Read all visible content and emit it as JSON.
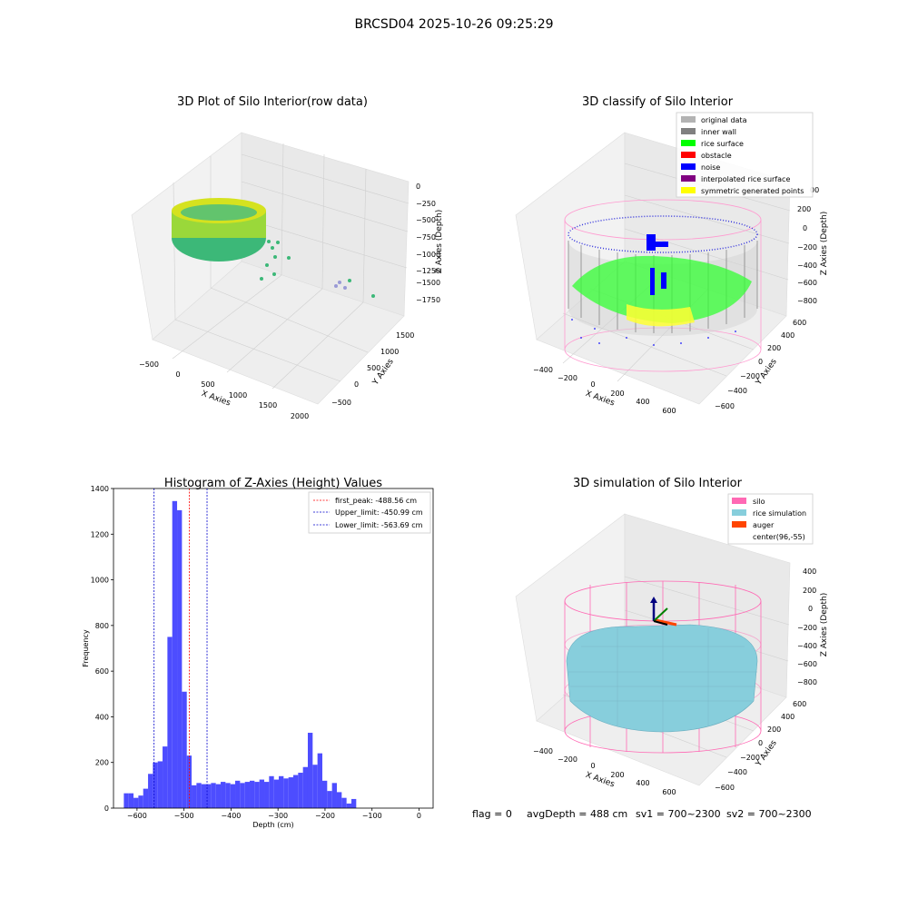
{
  "figure_title": "BRCSD04 2025-10-26 09:25:29",
  "colors": {
    "histogram_bar": "#4d4dff",
    "peak_line": "#ff0000",
    "limit_line": "#0000cc",
    "silo": "#ff69b4",
    "rice_simulation": "#87cedc",
    "auger": "#ff4500",
    "inner_wall": "#808080",
    "rice_surface": "#00ff00",
    "noise": "#0000ff",
    "original_data": "#b3b3b3",
    "obstacle": "#ff0000",
    "interpolated": "#800080",
    "symmetric": "#ffff00"
  },
  "chart_data": [
    {
      "type": "scatter3d",
      "title": "3D Plot of Silo Interior(row data)",
      "xlabel": "X Axies",
      "ylabel": "Y Axies",
      "zlabel": "Z Axies (Depth)",
      "x_ticks": [
        "−500",
        "0",
        "500",
        "1000",
        "1500",
        "2000"
      ],
      "y_ticks": [
        "−500",
        "0",
        "500",
        "1000",
        "1500"
      ],
      "z_ticks": [
        "0",
        "−250",
        "−500",
        "−750",
        "−1000",
        "−1250",
        "−1500",
        "−1750"
      ],
      "colormap": "viridis"
    },
    {
      "type": "scatter3d",
      "title": "3D classify of Silo Interior",
      "xlabel": "X Axies",
      "ylabel": "Y Axies",
      "zlabel": "Z Axies (Depth)",
      "x_ticks": [
        "−400",
        "−200",
        "0",
        "200",
        "400",
        "600"
      ],
      "y_ticks": [
        "−600",
        "−400",
        "−200",
        "0",
        "200",
        "400",
        "600"
      ],
      "z_ticks": [
        "200",
        "0",
        "−200",
        "−400",
        "−600",
        "−800"
      ],
      "z_top_tick_partial": "00",
      "legend": [
        {
          "label": "original data",
          "color": "#b3b3b3"
        },
        {
          "label": "inner wall",
          "color": "#808080"
        },
        {
          "label": "rice surface",
          "color": "#00ff00"
        },
        {
          "label": "obstacle",
          "color": "#ff0000"
        },
        {
          "label": "noise",
          "color": "#0000ff"
        },
        {
          "label": "interpolated rice surface",
          "color": "#800080"
        },
        {
          "label": "symmetric generated points",
          "color": "#ffff00"
        }
      ],
      "legend_position": "top-right"
    },
    {
      "type": "bar",
      "title": "Histogram of Z-Axies (Height) Values",
      "xlabel": "Depth (cm)",
      "ylabel": "Frequency",
      "xlim": [
        -650,
        30
      ],
      "ylim": [
        0,
        1400
      ],
      "x_ticks": [
        -600,
        -500,
        -400,
        -300,
        -200,
        -100,
        0
      ],
      "y_ticks": [
        0,
        200,
        400,
        600,
        800,
        1000,
        1200,
        1400
      ],
      "bin_start": -628,
      "bin_width": 10.3,
      "values": [
        65,
        65,
        45,
        55,
        85,
        150,
        200,
        205,
        270,
        750,
        1345,
        1305,
        510,
        230,
        100,
        110,
        105,
        105,
        110,
        105,
        115,
        110,
        105,
        120,
        110,
        115,
        120,
        115,
        125,
        115,
        140,
        125,
        140,
        130,
        135,
        145,
        155,
        180,
        330,
        190,
        240,
        120,
        75,
        110,
        70,
        45,
        20,
        40
      ],
      "vlines": [
        {
          "label": "first_peak: -488.56 cm",
          "x": -488.56,
          "color": "#ff0000"
        },
        {
          "label": "Upper_limit: -450.99 cm",
          "x": -450.99,
          "color": "#0000cc"
        },
        {
          "label": "Lower_limit: -563.69 cm",
          "x": -563.69,
          "color": "#0000cc"
        }
      ],
      "legend_position": "top-right"
    },
    {
      "type": "surface3d",
      "title": "3D simulation of Silo Interior",
      "xlabel": "X Axies",
      "ylabel": "Y Axies",
      "zlabel": "Z Axies (Depth)",
      "x_ticks": [
        "−400",
        "−200",
        "0",
        "200",
        "400",
        "600"
      ],
      "y_ticks": [
        "−600",
        "−400",
        "−200",
        "0",
        "200",
        "400",
        "600"
      ],
      "z_ticks": [
        "400",
        "200",
        "0",
        "−200",
        "−400",
        "−600",
        "−800"
      ],
      "legend": [
        {
          "label": "silo",
          "color": "#ff69b4"
        },
        {
          "label": "rice simulation",
          "color": "#87cedc"
        },
        {
          "label": "auger",
          "color": "#ff4500"
        },
        {
          "label": "center(96,-55)",
          "color": ""
        }
      ],
      "legend_position": "top-right"
    }
  ],
  "status": {
    "flag": "flag = 0",
    "avg_depth": "avgDepth = 488 cm",
    "sv1": "sv1 = 700~2300",
    "sv2": "sv2 = 700~2300"
  }
}
